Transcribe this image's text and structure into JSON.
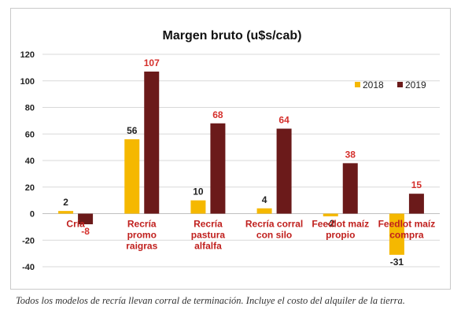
{
  "caption": "Todos los modelos de recría llevan corral de terminación. Incluye el costo del alquiler de la tierra.",
  "chart_data": {
    "type": "bar",
    "title": "Margen bruto (u$s/cab)",
    "xlabel": "",
    "ylabel": "",
    "ylim": [
      -40,
      120
    ],
    "yticks": [
      -40,
      -20,
      0,
      20,
      40,
      60,
      80,
      100,
      120
    ],
    "grid": true,
    "legend_position": "top-right",
    "categories": [
      [
        "Cría"
      ],
      [
        "Recría",
        "promo",
        "raigras"
      ],
      [
        "Recría",
        "pastura",
        "alfalfa"
      ],
      [
        "Recría corral",
        "con silo"
      ],
      [
        "Feedlot maíz",
        "propio"
      ],
      [
        "Feedlot maíz",
        "compra"
      ]
    ],
    "series": [
      {
        "name": "2018",
        "color": "#f5b800",
        "values": [
          2,
          56,
          10,
          4,
          -2,
          -31
        ]
      },
      {
        "name": "2019",
        "color": "#6b1a1a",
        "values": [
          -8,
          107,
          68,
          64,
          38,
          15
        ]
      }
    ]
  }
}
